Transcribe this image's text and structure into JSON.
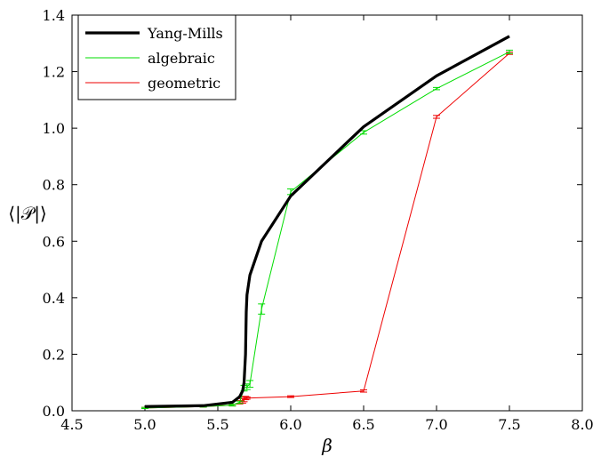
{
  "chart_data": {
    "type": "line",
    "xlabel": "β",
    "ylabel": "⟨|𝒫|⟩",
    "xlim": [
      4.5,
      8.0
    ],
    "ylim": [
      0.0,
      1.4
    ],
    "xticks": [
      "4.5",
      "5.0",
      "5.5",
      "6.0",
      "6.5",
      "7.0",
      "7.5",
      "8.0"
    ],
    "yticks": [
      "0.0",
      "0.2",
      "0.4",
      "0.6",
      "0.8",
      "1.0",
      "1.2",
      "1.4"
    ],
    "grid": false,
    "legend_position": "top-left",
    "series": [
      {
        "name": "Yang-Mills",
        "color": "#000000",
        "style": "thick",
        "x": [
          5.0,
          5.4,
          5.6,
          5.65,
          5.67,
          5.68,
          5.69,
          5.695,
          5.7,
          5.72,
          5.8,
          6.0,
          6.5,
          7.0,
          7.5
        ],
        "y": [
          0.015,
          0.018,
          0.03,
          0.05,
          0.07,
          0.1,
          0.2,
          0.35,
          0.41,
          0.48,
          0.6,
          0.76,
          1.005,
          1.185,
          1.325
        ]
      },
      {
        "name": "algebraic",
        "color": "#00dd00",
        "style": "thin",
        "x": [
          5.0,
          5.4,
          5.6,
          5.65,
          5.68,
          5.7,
          5.72,
          5.8,
          6.0,
          6.5,
          7.0,
          7.5
        ],
        "y": [
          0.01,
          0.015,
          0.02,
          0.03,
          0.08,
          0.085,
          0.095,
          0.36,
          0.775,
          0.985,
          1.14,
          1.27
        ],
        "err": [
          0.002,
          0.002,
          0.003,
          0.004,
          0.01,
          0.01,
          0.012,
          0.018,
          0.01,
          0.006,
          0.004,
          0.006
        ]
      },
      {
        "name": "geometric",
        "color": "#ee0000",
        "style": "thin",
        "x": [
          5.0,
          5.4,
          5.6,
          5.65,
          5.67,
          5.68,
          5.69,
          5.7,
          6.0,
          6.5,
          7.0,
          7.5
        ],
        "y": [
          0.01,
          0.015,
          0.02,
          0.03,
          0.035,
          0.04,
          0.045,
          0.045,
          0.05,
          0.07,
          1.04,
          1.265
        ],
        "err": [
          0.002,
          0.002,
          0.003,
          0.006,
          0.008,
          0.008,
          0.006,
          0.004,
          0.003,
          0.004,
          0.005,
          0.004
        ]
      }
    ]
  }
}
